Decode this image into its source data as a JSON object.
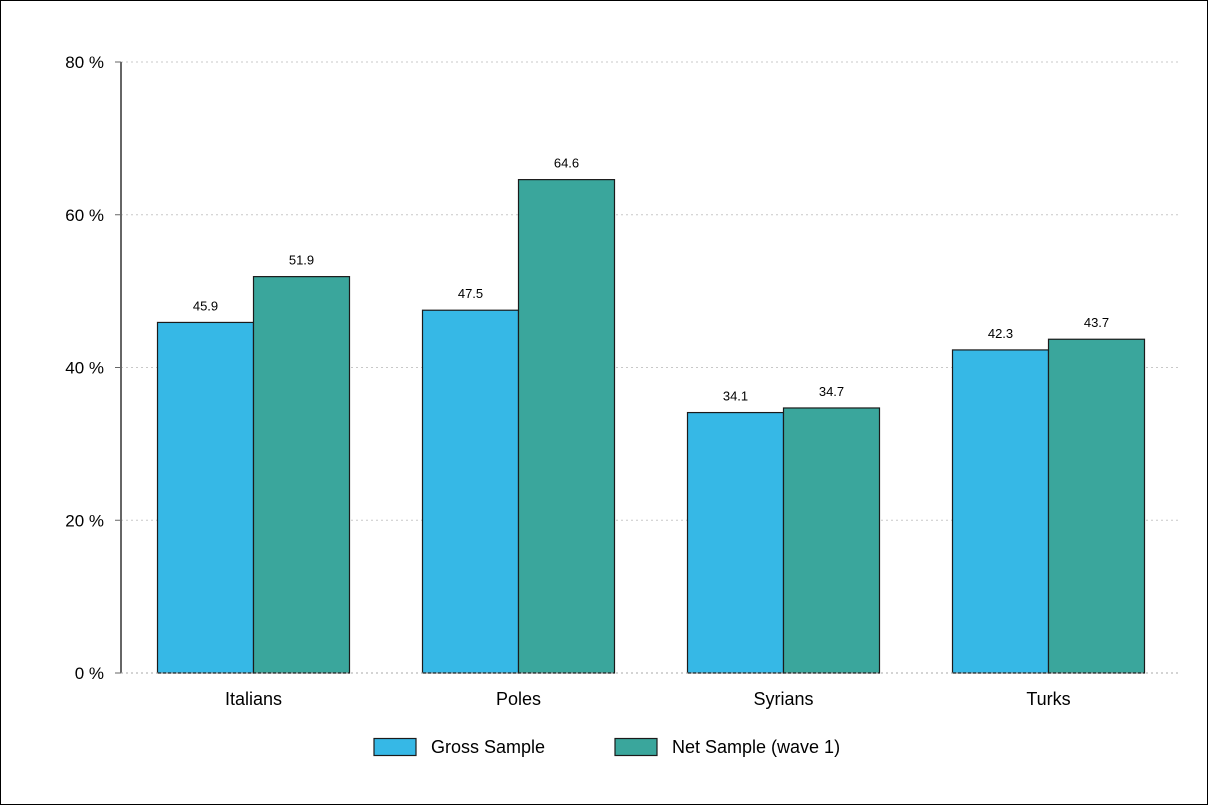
{
  "chart_data": {
    "type": "bar",
    "categories": [
      "Italians",
      "Poles",
      "Syrians",
      "Turks"
    ],
    "series": [
      {
        "name": "Gross Sample",
        "values": [
          45.9,
          47.5,
          34.1,
          42.3
        ],
        "labels": [
          "45.9",
          "47.5",
          "34.1",
          "42.3"
        ],
        "color": "#36B8E6"
      },
      {
        "name": "Net Sample (wave 1)",
        "values": [
          51.9,
          64.6,
          34.7,
          43.7
        ],
        "labels": [
          "51.9",
          "64.6",
          "34.7",
          "43.7"
        ],
        "color": "#3AA69C"
      }
    ],
    "ylim": [
      0,
      80
    ],
    "yticks": [
      0,
      20,
      40,
      60,
      80
    ],
    "ytick_labels": [
      "0 %",
      "20 %",
      "40 %",
      "60 %",
      "80 %"
    ],
    "grid": "horizontal dotted",
    "legend_position": "bottom",
    "title": "",
    "xlabel": "",
    "ylabel": ""
  }
}
